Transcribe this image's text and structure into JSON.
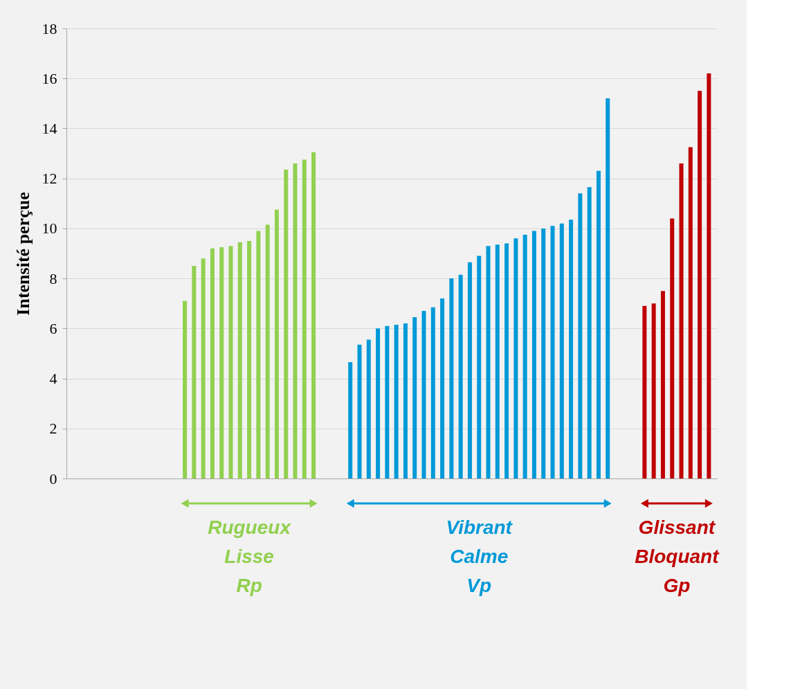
{
  "chart_data": {
    "type": "bar",
    "ylabel": "Intensité perçue",
    "categories": [
      null,
      null,
      null,
      null,
      null,
      null,
      null,
      null,
      null,
      null,
      null,
      null,
      null,
      null,
      null,
      null,
      null,
      null,
      null,
      null,
      null,
      null,
      null,
      null,
      null,
      null,
      null,
      null,
      null,
      null,
      null,
      null,
      null,
      null,
      null,
      null,
      null,
      null,
      null,
      null,
      null,
      null,
      null,
      null,
      null,
      null,
      null,
      null,
      null,
      null,
      null,
      null,
      null,
      null,
      null,
      null,
      null,
      null,
      null,
      null,
      null,
      null,
      null,
      null,
      null,
      null,
      null,
      null,
      null,
      null
    ],
    "series": [
      {
        "color": "#92d050",
        "values": [
          null,
          null,
          null,
          null,
          null,
          null,
          null,
          null,
          null,
          null,
          null,
          null,
          7.1,
          8.5,
          8.8,
          9.2,
          9.25,
          9.3,
          9.45,
          9.5,
          9.9,
          10.15,
          10.75,
          12.35,
          12.6,
          12.75,
          13.05,
          null,
          null,
          null,
          null,
          null,
          null,
          null,
          null,
          null,
          null,
          null,
          null,
          null,
          null,
          null,
          null,
          null,
          null,
          null,
          null,
          null,
          null,
          null,
          null,
          null,
          null,
          null,
          null,
          null,
          null,
          null,
          null,
          null,
          null,
          null,
          null,
          null,
          null,
          null,
          null,
          null,
          null,
          null
        ]
      },
      {
        "color": "#0099d8",
        "values": [
          null,
          null,
          null,
          null,
          null,
          null,
          null,
          null,
          null,
          null,
          null,
          null,
          null,
          null,
          null,
          null,
          null,
          null,
          null,
          null,
          null,
          null,
          null,
          null,
          null,
          null,
          null,
          null,
          null,
          null,
          4.65,
          5.35,
          5.55,
          6.0,
          6.1,
          6.15,
          6.2,
          6.45,
          6.7,
          6.85,
          7.2,
          8.0,
          8.15,
          8.65,
          8.9,
          9.3,
          9.35,
          9.4,
          9.6,
          9.75,
          9.9,
          10.0,
          10.1,
          10.2,
          10.35,
          11.4,
          11.65,
          12.3,
          15.2,
          null,
          null,
          null,
          null,
          null,
          null,
          null,
          null,
          null,
          null,
          null
        ]
      },
      {
        "color": "#c00000",
        "values": [
          null,
          null,
          null,
          null,
          null,
          null,
          null,
          null,
          null,
          null,
          null,
          null,
          null,
          null,
          null,
          null,
          null,
          null,
          null,
          null,
          null,
          null,
          null,
          null,
          null,
          null,
          null,
          null,
          null,
          null,
          null,
          null,
          null,
          null,
          null,
          null,
          null,
          null,
          null,
          null,
          null,
          null,
          null,
          null,
          null,
          null,
          null,
          null,
          null,
          null,
          null,
          null,
          null,
          null,
          null,
          null,
          null,
          null,
          null,
          null,
          null,
          null,
          6.9,
          7.0,
          7.5,
          10.4,
          12.6,
          13.25,
          15.5,
          16.2
        ]
      }
    ],
    "annotations": [
      "Rugueux\nLisse\nRp",
      "Vibrant\nCalme\nVp",
      "Glissant\nBloquant\nGp"
    ],
    "ylim": [
      0,
      18
    ],
    "yticks": [
      0,
      2,
      4,
      6,
      8,
      10,
      12,
      14,
      16,
      18
    ],
    "grid": "y",
    "legend": false,
    "tick_labels": "y"
  }
}
